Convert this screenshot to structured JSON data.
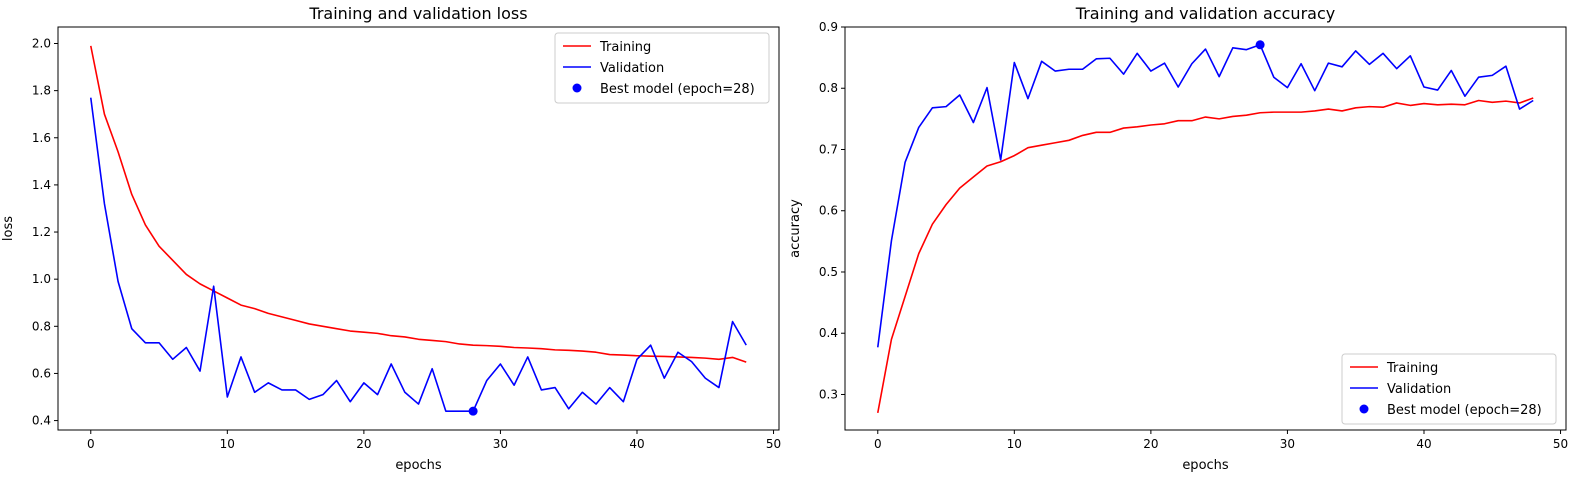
{
  "chart_data": [
    {
      "type": "line",
      "title": "Training and validation loss",
      "xlabel": "epochs",
      "ylabel": "loss",
      "xlim": [
        -2.4,
        50.4
      ],
      "ylim": [
        0.36,
        2.07
      ],
      "xticks": [
        0,
        10,
        20,
        30,
        40,
        50
      ],
      "yticks": [
        0.4,
        0.6,
        0.8,
        1.0,
        1.2,
        1.4,
        1.6,
        1.8,
        2.0
      ],
      "ytick_decimals": 1,
      "legend_loc": "top-right",
      "x": [
        0,
        1,
        2,
        3,
        4,
        5,
        6,
        7,
        8,
        9,
        10,
        11,
        12,
        13,
        14,
        15,
        16,
        17,
        18,
        19,
        20,
        21,
        22,
        23,
        24,
        25,
        26,
        27,
        28,
        29,
        30,
        31,
        32,
        33,
        34,
        35,
        36,
        37,
        38,
        39,
        40,
        41,
        42,
        43,
        44,
        45,
        46,
        47,
        48
      ],
      "series": [
        {
          "name": "Training",
          "color": "#ff0000",
          "values": [
            1.99,
            1.7,
            1.54,
            1.36,
            1.23,
            1.14,
            1.08,
            1.02,
            0.98,
            0.95,
            0.92,
            0.89,
            0.875,
            0.855,
            0.84,
            0.825,
            0.81,
            0.8,
            0.79,
            0.78,
            0.775,
            0.77,
            0.76,
            0.755,
            0.745,
            0.74,
            0.735,
            0.725,
            0.72,
            0.718,
            0.715,
            0.71,
            0.708,
            0.705,
            0.7,
            0.698,
            0.695,
            0.69,
            0.68,
            0.678,
            0.675,
            0.673,
            0.672,
            0.67,
            0.668,
            0.665,
            0.66,
            0.668,
            0.648
          ]
        },
        {
          "name": "Validation",
          "color": "#0000ff",
          "values": [
            1.77,
            1.32,
            0.99,
            0.79,
            0.73,
            0.73,
            0.66,
            0.71,
            0.61,
            0.97,
            0.5,
            0.67,
            0.52,
            0.56,
            0.53,
            0.53,
            0.49,
            0.51,
            0.57,
            0.48,
            0.56,
            0.51,
            0.64,
            0.52,
            0.47,
            0.62,
            0.44,
            0.44,
            0.44,
            0.57,
            0.64,
            0.55,
            0.67,
            0.53,
            0.54,
            0.45,
            0.52,
            0.47,
            0.54,
            0.48,
            0.66,
            0.72,
            0.58,
            0.69,
            0.65,
            0.58,
            0.54,
            0.82,
            0.72
          ]
        }
      ],
      "best_point": {
        "name": "Best model (epoch=28)",
        "x": 28,
        "y": 0.44,
        "color": "#0000ff"
      }
    },
    {
      "type": "line",
      "title": "Training and validation accuracy",
      "xlabel": "epochs",
      "ylabel": "accuracy",
      "xlim": [
        -2.4,
        50.4
      ],
      "ylim": [
        0.242,
        0.9
      ],
      "xticks": [
        0,
        10,
        20,
        30,
        40,
        50
      ],
      "yticks": [
        0.3,
        0.4,
        0.5,
        0.6,
        0.7,
        0.8,
        0.9
      ],
      "ytick_decimals": 1,
      "legend_loc": "bottom-right",
      "x": [
        0,
        1,
        2,
        3,
        4,
        5,
        6,
        7,
        8,
        9,
        10,
        11,
        12,
        13,
        14,
        15,
        16,
        17,
        18,
        19,
        20,
        21,
        22,
        23,
        24,
        25,
        26,
        27,
        28,
        29,
        30,
        31,
        32,
        33,
        34,
        35,
        36,
        37,
        38,
        39,
        40,
        41,
        42,
        43,
        44,
        45,
        46,
        47,
        48
      ],
      "series": [
        {
          "name": "Training",
          "color": "#ff0000",
          "values": [
            0.27,
            0.39,
            0.46,
            0.53,
            0.578,
            0.61,
            0.637,
            0.655,
            0.673,
            0.68,
            0.69,
            0.703,
            0.707,
            0.711,
            0.715,
            0.723,
            0.728,
            0.728,
            0.735,
            0.737,
            0.74,
            0.742,
            0.747,
            0.747,
            0.753,
            0.75,
            0.754,
            0.756,
            0.76,
            0.761,
            0.761,
            0.761,
            0.763,
            0.766,
            0.763,
            0.768,
            0.77,
            0.769,
            0.776,
            0.772,
            0.775,
            0.773,
            0.774,
            0.773,
            0.78,
            0.777,
            0.779,
            0.776,
            0.784
          ]
        },
        {
          "name": "Validation",
          "color": "#0000ff",
          "values": [
            0.377,
            0.551,
            0.679,
            0.736,
            0.768,
            0.77,
            0.789,
            0.744,
            0.801,
            0.683,
            0.842,
            0.783,
            0.844,
            0.828,
            0.831,
            0.831,
            0.848,
            0.849,
            0.823,
            0.857,
            0.828,
            0.841,
            0.802,
            0.84,
            0.864,
            0.819,
            0.866,
            0.863,
            0.871,
            0.818,
            0.801,
            0.84,
            0.796,
            0.841,
            0.835,
            0.861,
            0.839,
            0.857,
            0.832,
            0.853,
            0.802,
            0.797,
            0.829,
            0.787,
            0.818,
            0.821,
            0.836,
            0.766,
            0.78
          ]
        }
      ],
      "best_point": {
        "name": "Best model (epoch=28)",
        "x": 28,
        "y": 0.871,
        "color": "#0000ff"
      }
    }
  ]
}
